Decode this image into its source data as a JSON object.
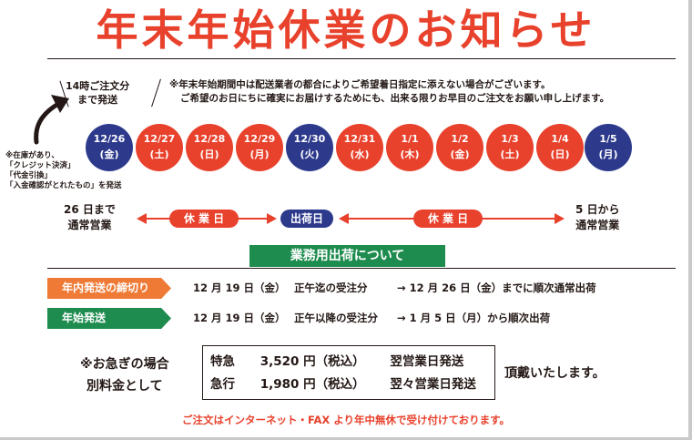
{
  "title": "年末年始休業のお知らせ",
  "order_until": {
    "line1": "14時ご注文分",
    "line2": "まで発送"
  },
  "notes": {
    "line1": "※年末年始期間中は配送業者の都合によりご希望着日指定に添えない場合がございます。",
    "line2": "ご希望のお日にちに確実にお届けするためにも、出来る限りお早目のご注文をお願い申し上げます。"
  },
  "stock_note": [
    "※在庫があり、",
    "「クレジット決済」",
    "「代金引換」",
    "「入金確認がとれたもの」を発送"
  ],
  "dates": [
    {
      "date": "12/26",
      "day": "(金)",
      "color": "blue"
    },
    {
      "date": "12/27",
      "day": "(土)",
      "color": "red"
    },
    {
      "date": "12/28",
      "day": "(日)",
      "color": "red"
    },
    {
      "date": "12/29",
      "day": "(月)",
      "color": "red"
    },
    {
      "date": "12/30",
      "day": "(火)",
      "color": "blue"
    },
    {
      "date": "12/31",
      "day": "(水)",
      "color": "red"
    },
    {
      "date": "1/1",
      "day": "(木)",
      "color": "red"
    },
    {
      "date": "1/2",
      "day": "(金)",
      "color": "red"
    },
    {
      "date": "1/3",
      "day": "(土)",
      "color": "red"
    },
    {
      "date": "1/4",
      "day": "(日)",
      "color": "red"
    },
    {
      "date": "1/5",
      "day": "(月)",
      "color": "blue"
    }
  ],
  "timeline": {
    "left_line1": "26 日まで",
    "left_line2": "通常営業",
    "holiday1": "休 業 日",
    "shipping_day": "出荷日",
    "holiday2": "休 業 日",
    "right_line1": "5 日から",
    "right_line2": "通常営業"
  },
  "business_shipping_heading": "業務用出荷について",
  "rows": [
    {
      "tag": "年内発送の締切り",
      "date": "12 月 19 日（金）",
      "cond": "正午迄の受注分",
      "result": "→ 12 月 26 日（金）までに順次通常出荷"
    },
    {
      "tag": "年始発送",
      "date": "12 月 19 日（金）",
      "cond": "正午以降の受注分",
      "result": "→ 1 月 5 日（月）から順次出荷"
    }
  ],
  "urgent": {
    "left_line1": "※お急ぎの場合",
    "left_line2": "別料金として",
    "right": "頂戴いたします。",
    "fees": [
      {
        "type": "特急",
        "price": "3,520 円（税込）",
        "delivery": "翌営業日発送"
      },
      {
        "type": "急行",
        "price": "1,980 円（税込）",
        "delivery": "翌々営業日発送"
      }
    ]
  },
  "footer": "ご注文はインターネット・FAX より年中無休で受け付けております。",
  "colors": {
    "red": "#e8412c",
    "blue": "#2d3a8c",
    "green": "#1e8c4e",
    "orange": "#ee7a35"
  }
}
